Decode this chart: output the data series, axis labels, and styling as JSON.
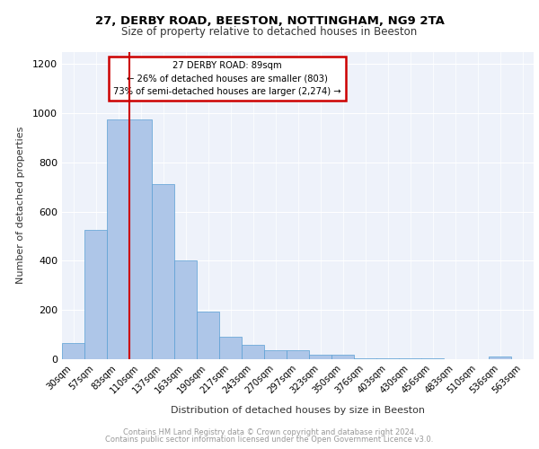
{
  "title1": "27, DERBY ROAD, BEESTON, NOTTINGHAM, NG9 2TA",
  "title2": "Size of property relative to detached houses in Beeston",
  "xlabel": "Distribution of detached houses by size in Beeston",
  "ylabel": "Number of detached properties",
  "categories": [
    "30sqm",
    "57sqm",
    "83sqm",
    "110sqm",
    "137sqm",
    "163sqm",
    "190sqm",
    "217sqm",
    "243sqm",
    "270sqm",
    "297sqm",
    "323sqm",
    "350sqm",
    "376sqm",
    "403sqm",
    "430sqm",
    "456sqm",
    "483sqm",
    "510sqm",
    "536sqm",
    "563sqm"
  ],
  "values": [
    65,
    525,
    975,
    975,
    710,
    400,
    195,
    90,
    58,
    38,
    35,
    18,
    18,
    5,
    5,
    2,
    2,
    1,
    1,
    12,
    1
  ],
  "bar_color": "#aec6e8",
  "bar_edge_color": "#5a9fd4",
  "red_line_index": 2,
  "annotation_title": "27 DERBY ROAD: 89sqm",
  "annotation_line1": "← 26% of detached houses are smaller (803)",
  "annotation_line2": "73% of semi-detached houses are larger (2,274) →",
  "annotation_box_color": "#ffffff",
  "annotation_border_color": "#cc0000",
  "ylim": [
    0,
    1250
  ],
  "yticks": [
    0,
    200,
    400,
    600,
    800,
    1000,
    1200
  ],
  "background_color": "#eef2fa",
  "footer1": "Contains HM Land Registry data © Crown copyright and database right 2024.",
  "footer2": "Contains public sector information licensed under the Open Government Licence v3.0."
}
